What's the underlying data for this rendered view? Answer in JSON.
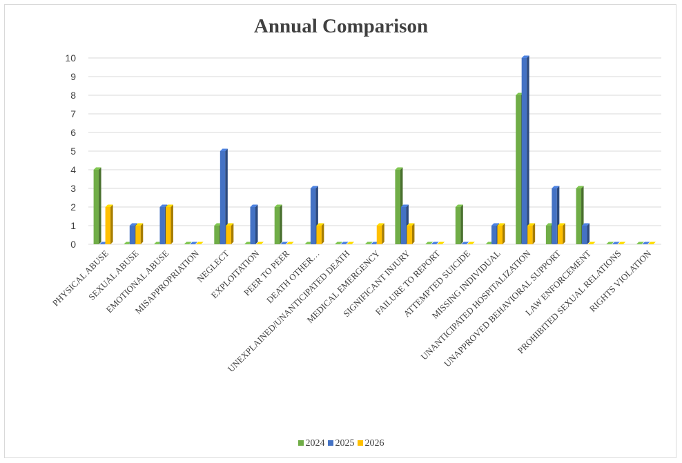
{
  "chart_data": {
    "type": "bar",
    "title": "Annual Comparison",
    "xlabel": "",
    "ylabel": "",
    "ylim": [
      0,
      10
    ],
    "yticks": [
      0,
      1,
      2,
      3,
      4,
      5,
      6,
      7,
      8,
      9,
      10
    ],
    "grid": true,
    "legend_position": "bottom",
    "categories": [
      "PHYSICAL ABUSE",
      "SEXUAL ABUSE",
      "EMOTIONAL ABUSE",
      "MISAPPROPRIATION",
      "NEGLECT",
      "EXPLOITATION",
      "PEER TO PEER",
      "DEATH OTHER…",
      "UNEXPLAINED/UNANTICIPATED DEATH",
      "MEDICAL EMERGENCY",
      "SIGNIFICANT INJURY",
      "FAILURE TO REPORT",
      "ATTEMPTED SUICIDE",
      "MISSING INDIVIDUAL",
      "UNANTICIPATED HOSPITALIZATION",
      "UNAPPROVED BEHAVIORAL SUPPORT",
      "LAW ENFORCEMENT",
      "PROHIBITED SEXUAL RELATIONS",
      "RIGHTS VIOLATION"
    ],
    "series": [
      {
        "name": "2024",
        "color": "#70ad47",
        "values": [
          4,
          0,
          0,
          0,
          1,
          0,
          2,
          0,
          0,
          0,
          4,
          0,
          2,
          0,
          8,
          1,
          3,
          0,
          0
        ]
      },
      {
        "name": "2025",
        "color": "#4472c4",
        "values": [
          0,
          1,
          2,
          0,
          5,
          2,
          0,
          3,
          0,
          0,
          2,
          0,
          0,
          1,
          10,
          3,
          1,
          0,
          0
        ]
      },
      {
        "name": "2026",
        "color": "#ffc000",
        "values": [
          2,
          1,
          2,
          0,
          1,
          0,
          0,
          1,
          0,
          1,
          1,
          0,
          0,
          1,
          1,
          1,
          0,
          0,
          0
        ]
      }
    ]
  }
}
